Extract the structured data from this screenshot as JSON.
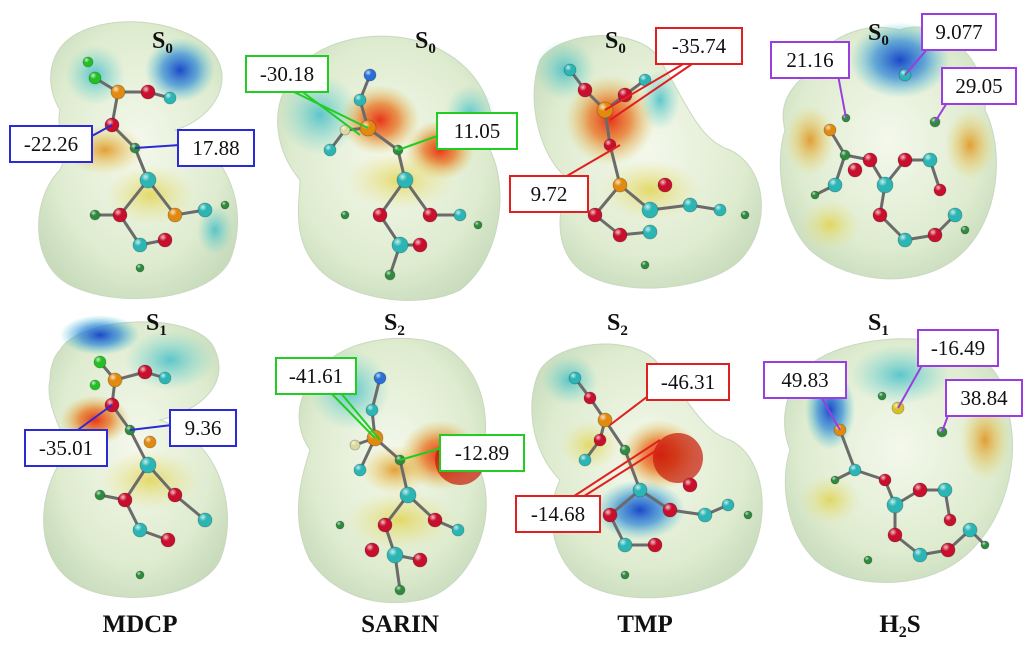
{
  "colors": {
    "MDCP": "#2a2ad6",
    "SARIN": "#22cc22",
    "TMP": "#e02020",
    "H2S": "#9b3ee0",
    "atom_C": "#2bb5b5",
    "atom_O": "#c8102e",
    "atom_P": "#e08a10",
    "atom_H": "#2e8b3e",
    "atom_Cl": "#22c022",
    "atom_F": "#d9d9a0",
    "atom_N": "#2a6fd6",
    "atom_S": "#d8c020"
  },
  "molecules": [
    {
      "name": "MDCP",
      "name_main": "MDCP",
      "name_sub": ""
    },
    {
      "name": "SARIN",
      "name_main": "SARIN",
      "name_sub": ""
    },
    {
      "name": "TMP",
      "name_main": "TMP",
      "name_sub": ""
    },
    {
      "name": "H2S",
      "name_main": "H",
      "name_sub": "2",
      "name_tail": "S"
    }
  ],
  "panels": [
    {
      "molecule": "MDCP",
      "state": "S",
      "state_sub": "0",
      "values": [
        "-22.26",
        "17.88"
      ]
    },
    {
      "molecule": "SARIN",
      "state": "S",
      "state_sub": "0",
      "values": [
        "-30.18",
        "11.05"
      ]
    },
    {
      "molecule": "TMP",
      "state": "S",
      "state_sub": "0",
      "values": [
        "-35.74",
        "9.72"
      ]
    },
    {
      "molecule": "H2S",
      "state": "S",
      "state_sub": "0",
      "values": [
        "21.16",
        "9.077",
        "29.05"
      ]
    },
    {
      "molecule": "MDCP",
      "state": "S",
      "state_sub": "1",
      "values": [
        "-35.01",
        "9.36"
      ]
    },
    {
      "molecule": "SARIN",
      "state": "S",
      "state_sub": "2",
      "values": [
        "-41.61",
        "-12.89"
      ]
    },
    {
      "molecule": "TMP",
      "state": "S",
      "state_sub": "2",
      "values": [
        "-46.31",
        "-14.68"
      ]
    },
    {
      "molecule": "H2S",
      "state": "S",
      "state_sub": "1",
      "values": [
        "49.83",
        "-16.49",
        "38.84"
      ]
    }
  ]
}
